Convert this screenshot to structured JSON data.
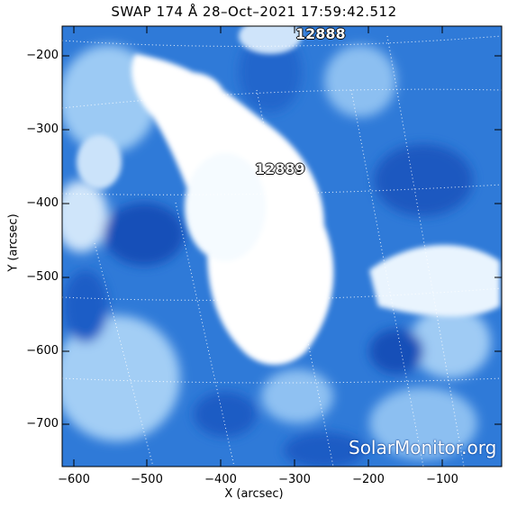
{
  "title": "SWAP 174 Å 28–Oct–2021 17:59:42.512",
  "x_axis_label": "X (arcsec)",
  "y_axis_label": "Y (arcsec)",
  "x_ticks": [
    "−600",
    "−500",
    "−400",
    "−300",
    "−200",
    "−100"
  ],
  "y_ticks": [
    "−200",
    "−300",
    "−400",
    "−500",
    "−600",
    "−700"
  ],
  "regions": [
    {
      "id": "region-12888",
      "label": "12888"
    },
    {
      "id": "region-12889",
      "label": "12889"
    }
  ],
  "watermark": "SolarMonitor.org",
  "colors": {
    "frame": "#000000",
    "deep_blue": "#1a5fc4",
    "mid_blue": "#3a86e0",
    "light_blue": "#8cc0f2",
    "bright": "#ffffff"
  }
}
